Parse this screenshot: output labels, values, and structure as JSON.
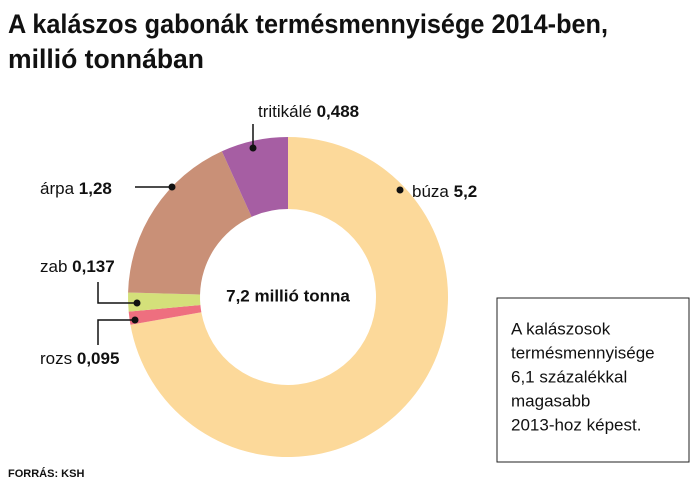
{
  "chart_data": {
    "type": "donut",
    "title": [
      "A kalászos gabonák termésmennyisége 2014-ben,",
      "millió tonnában"
    ],
    "categories": [
      "búza",
      "rozs",
      "zab",
      "árpa",
      "tritikálé"
    ],
    "values": [
      5.2,
      0.095,
      0.137,
      1.28,
      0.488
    ],
    "value_labels": [
      "5,2",
      "0,095",
      "0,137",
      "1,28",
      "0,488"
    ],
    "colors": [
      "#fcd99a",
      "#ee6f7f",
      "#d4e07a",
      "#c99077",
      "#a65ea3"
    ],
    "center_label": "7,2 millió tonna",
    "note": [
      "A kalászosok",
      "termésmennyisége",
      "6,1 százalékkal",
      "magasabb",
      "2013-hoz képest."
    ],
    "source": "FORRÁS: KSH"
  }
}
